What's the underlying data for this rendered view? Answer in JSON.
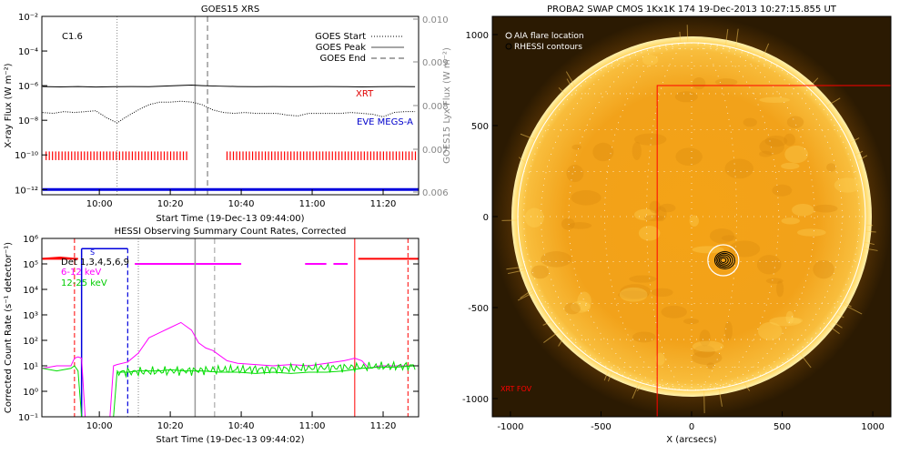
{
  "chart_data": [
    {
      "type": "line",
      "title": "GOES15 XRS",
      "xlabel": "Start Time (19-Dec-13 09:44:00)",
      "ylabel": "X-ray Flux (W m⁻²)",
      "ylabel_right": "GOES15 Lyx Flux (W m⁻²)",
      "flare_class": "C1.6",
      "x_ticks": [
        "10:00",
        "10:20",
        "10:40",
        "11:00",
        "11:20"
      ],
      "y_ticks": [
        "10⁻²",
        "10⁻⁴",
        "10⁻⁶",
        "10⁻⁸",
        "10⁻¹⁰",
        "10⁻¹²"
      ],
      "y_ticks_right": [
        "0.010",
        "0.009",
        "0.008",
        "0.007",
        "0.006"
      ],
      "xlim_minutes": [
        -0.2,
        106
      ],
      "ylim_log10": [
        -12.3,
        -2
      ],
      "legend": [
        "GOES Start",
        "GOES Peak",
        "GOES End"
      ],
      "annotations": [
        "XRT",
        "EVE MEGS-A"
      ],
      "markers_minutes": {
        "goes_start": 21,
        "goes_peak": 43,
        "goes_end": 46.5
      },
      "series": [
        {
          "name": "",
          "color": "#000000",
          "x": [
            0,
            5,
            10,
            15,
            20,
            25,
            30,
            35,
            40,
            42,
            45,
            50,
            55,
            60,
            65,
            70,
            75,
            80,
            85,
            90,
            95,
            100,
            105
          ],
          "y": [
            -6.05,
            -6.07,
            -6.05,
            -6.08,
            -6.06,
            -6.05,
            -6.06,
            -6.02,
            -5.98,
            -5.97,
            -6.0,
            -6.03,
            -6.05,
            -6.06,
            -6.05,
            -6.06,
            -6.06,
            -6.05,
            -6.06,
            -6.07,
            -6.06,
            -6.05,
            -6.06
          ]
        },
        {
          "name": "",
          "color": "#000000",
          "style": "dotted",
          "x": [
            0,
            3,
            6,
            9,
            12,
            15,
            18,
            21,
            24,
            27,
            30,
            33,
            36,
            39,
            42,
            45,
            48,
            51,
            54,
            57,
            60,
            63,
            66,
            69,
            72,
            75,
            78,
            81,
            84,
            87,
            90,
            93,
            96,
            99,
            102,
            105
          ],
          "y": [
            -7.55,
            -7.6,
            -7.5,
            -7.55,
            -7.5,
            -7.45,
            -7.85,
            -8.15,
            -7.75,
            -7.4,
            -7.1,
            -6.95,
            -6.95,
            -6.9,
            -6.95,
            -7.1,
            -7.4,
            -7.55,
            -7.6,
            -7.55,
            -7.6,
            -7.6,
            -7.6,
            -7.7,
            -7.75,
            -7.6,
            -7.6,
            -7.6,
            -7.6,
            -7.55,
            -7.6,
            -7.65,
            -7.8,
            -7.55,
            -7.5,
            -7.5
          ]
        },
        {
          "name": "",
          "color": "#0000dd",
          "x": [
            0,
            106
          ],
          "y": [
            -12.0,
            -12.0
          ]
        }
      ],
      "xrt_ticks_minutes": {
        "intervals": [
          [
            1,
            41
          ],
          [
            52,
            106
          ]
        ],
        "spacing": 0.9,
        "color": "#ff0000"
      }
    },
    {
      "type": "line",
      "title": "HESSI Observing Summary Count Rates, Corrected",
      "xlabel": "Start Time (19-Dec-13 09:44:02)",
      "ylabel": "Corrected Count Rate (s⁻¹ detector⁻¹)",
      "x_ticks": [
        "10:00",
        "10:20",
        "10:40",
        "11:00",
        "11:20"
      ],
      "y_ticks": [
        "10⁶",
        "10⁵",
        "10⁴",
        "10³",
        "10²",
        "10¹",
        "10⁰",
        "10⁻¹"
      ],
      "xlim_minutes": [
        -0.2,
        106
      ],
      "ylim_log10": [
        -1,
        6
      ],
      "legend": [
        "Det 1,3,4,5,6,9",
        "6-12 keV",
        "12-25 keV"
      ],
      "bar_label": "S",
      "series": [
        {
          "name": "6-12 keV",
          "color": "#ff00ff",
          "x": [
            0,
            4,
            8,
            9,
            10,
            11,
            12,
            13,
            14,
            15,
            16,
            17,
            18,
            19,
            20,
            21,
            24,
            27,
            30,
            33,
            36,
            39,
            42,
            44,
            46,
            48,
            50,
            52,
            55,
            60,
            65,
            70,
            75,
            80,
            85,
            88,
            90,
            92,
            95,
            100,
            105
          ],
          "y": [
            0.9,
            1.0,
            1.0,
            1.3,
            1.35,
            1.3,
            -1,
            -1,
            -1,
            -1,
            -1,
            -1,
            -1,
            -1,
            1.0,
            1.05,
            1.15,
            1.5,
            2.1,
            2.3,
            2.5,
            2.7,
            2.4,
            1.9,
            1.7,
            1.6,
            1.4,
            1.2,
            1.1,
            1.05,
            1.0,
            1.05,
            1.0,
            1.1,
            1.2,
            1.3,
            1.2,
            0.9,
            1.0,
            1.0,
            1.0
          ]
        },
        {
          "name": "12-25 keV",
          "color": "#00dd00",
          "x": [
            0,
            4,
            8,
            9,
            10,
            11,
            12,
            16,
            20,
            21,
            24,
            27,
            30,
            33,
            36,
            40,
            45,
            50,
            55,
            60,
            65,
            70,
            75,
            80,
            85,
            90,
            95,
            100,
            105
          ],
          "y": [
            0.9,
            0.8,
            0.9,
            1.0,
            0.8,
            -1,
            -1,
            -1,
            -1,
            0.75,
            0.75,
            0.8,
            0.8,
            0.8,
            0.85,
            0.8,
            0.8,
            0.75,
            0.75,
            0.7,
            0.75,
            0.7,
            0.75,
            0.75,
            0.8,
            0.9,
            0.95,
            0.95,
            1.0
          ]
        },
        {
          "name": "HESSI lines",
          "color": "#ff0000",
          "x": [
            0,
            5,
            9,
            10
          ],
          "y": [
            5.2,
            5.25,
            5.2,
            5.2
          ]
        }
      ],
      "attenuator_minutes": {
        "red_top": [
          [
            0,
            8
          ],
          [
            89,
            106
          ]
        ],
        "magenta_top": [
          [
            26,
            56
          ],
          [
            74,
            80
          ],
          [
            82,
            86
          ]
        ],
        "blue_top": [
          [
            11,
            24
          ]
        ]
      }
    },
    {
      "type": "heatmap",
      "title": "PROBA2 SWAP CMOS 1Kx1K 174 19-Dec-2013 10:27:15.855 UT",
      "xlabel": "X (arcsecs)",
      "ylabel": "",
      "x_ticks": [
        "-1000",
        "-500",
        "0",
        "500",
        "1000"
      ],
      "y_ticks": [
        "1000",
        "500",
        "0",
        "-500",
        "-1000"
      ],
      "xlim": [
        -1100,
        1100
      ],
      "ylim": [
        -1100,
        1100
      ],
      "legend": [
        "AIA flare location",
        "RHESSI contours"
      ],
      "fov_label": "XRT FOV",
      "flare_location_arcsec": [
        175,
        -240
      ],
      "xrt_fov_arcsec": {
        "x": [
          -190,
          1100
        ],
        "y": [
          -1100,
          720
        ]
      }
    }
  ],
  "colors": {
    "goes_black": "#000000",
    "eve_blue": "#0000dd",
    "xrt_red": "#ff0000",
    "hessi_magenta": "#ff00ff",
    "hessi_green": "#00dd00",
    "sun_core": "#f7a017",
    "sun_edge": "#ffe08a",
    "space_dark": "#2b1a02"
  }
}
